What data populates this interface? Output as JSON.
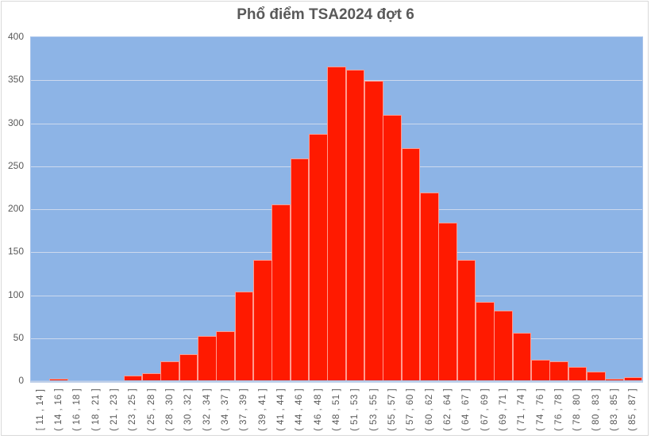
{
  "chart_data": {
    "type": "bar",
    "title": "Phổ điểm TSA2024 đợt 6",
    "xlabel": "",
    "ylabel": "",
    "ylim": [
      0,
      400
    ],
    "yticks": [
      0,
      50,
      100,
      150,
      200,
      250,
      300,
      350,
      400
    ],
    "grid": true,
    "legend": null,
    "colors": {
      "bar": "#ff1a00",
      "plot_bg": "#8db4e6",
      "gridline": "#cdd9ee",
      "text": "#595959"
    },
    "categories": [
      "[ 11 , 14 ]",
      "( 14 , 16 ]",
      "( 16 , 18 ]",
      "( 18 , 21 ]",
      "( 21 , 23 ]",
      "( 23 , 25 ]",
      "( 25 , 28 ]",
      "( 28 , 30 ]",
      "( 30 , 32 ]",
      "( 32 , 34 ]",
      "( 34 , 37 ]",
      "( 37 , 39 ]",
      "( 39 , 41 ]",
      "( 41 , 44 ]",
      "( 44 , 46 ]",
      "( 46 , 48 ]",
      "( 48 , 51 ]",
      "( 51 , 53 ]",
      "( 53 , 55 ]",
      "( 55 , 57 ]",
      "( 57 , 60 ]",
      "( 60 , 62 ]",
      "( 62 , 64 ]",
      "( 64 , 67 ]",
      "( 67 , 69 ]",
      "( 69 , 71 ]",
      "( 71 , 74 ]",
      "( 74 , 76 ]",
      "( 76 , 78 ]",
      "( 78 , 80 ]",
      "( 80 , 83 ]",
      "( 83 , 85 ]",
      "( 85 , 87 ]"
    ],
    "values": [
      0,
      2,
      0,
      0,
      0,
      6,
      8,
      22,
      30,
      52,
      57,
      103,
      140,
      205,
      258,
      287,
      365,
      361,
      348,
      309,
      270,
      218,
      183,
      140,
      91,
      81,
      55,
      24,
      22,
      16,
      10,
      2,
      4
    ]
  }
}
